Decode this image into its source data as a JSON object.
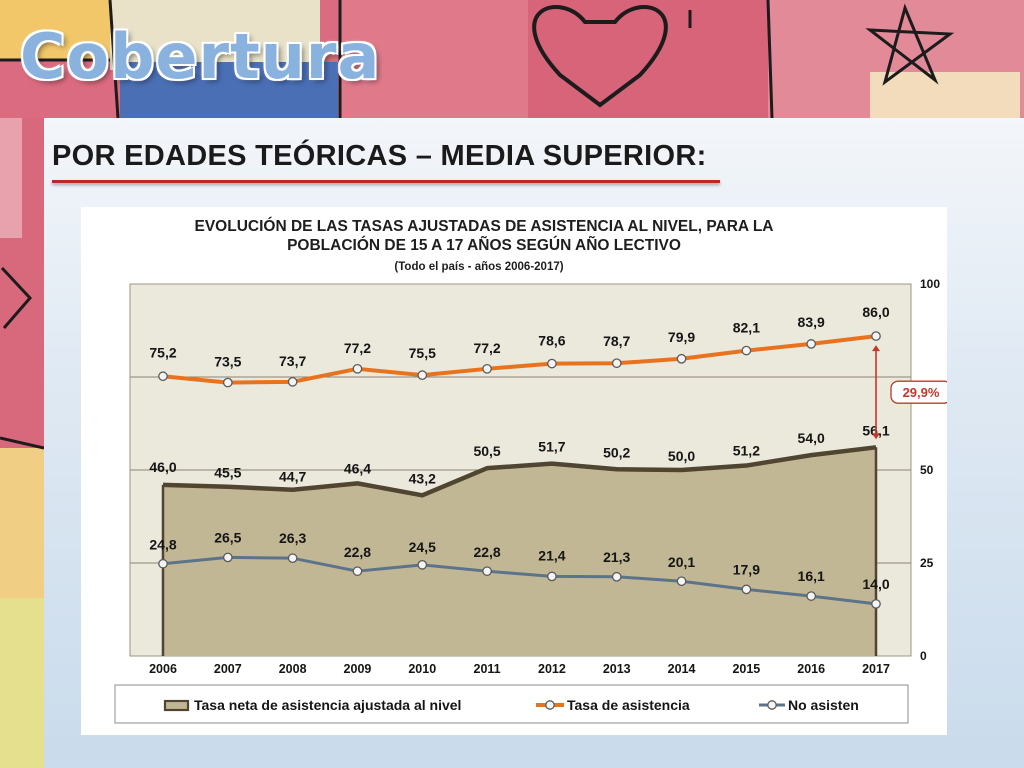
{
  "slide": {
    "banner_title": "Cobertura",
    "heading": "POR EDADES TEÓRICAS – MEDIA SUPERIOR:"
  },
  "colors": {
    "net_rate_fill": "#c2b795",
    "net_rate_line": "#4f4530",
    "attendance_line": "#e8731e",
    "not_attending_line": "#5b7489",
    "annotation": "#c0392b",
    "heading_rule": "#b52a2a"
  },
  "chart_data": {
    "type": "area",
    "title_lines": [
      "EVOLUCIÓN DE LAS TASAS  AJUSTADAS DE ASISTENCIA AL NIVEL, PARA LA",
      "POBLACIÓN DE 15 A 17 AÑOS SEGÚN AÑO LECTIVO"
    ],
    "subtitle": "(Todo el país  - años 2006-2017)",
    "categories": [
      "2006",
      "2007",
      "2008",
      "2009",
      "2010",
      "2011",
      "2012",
      "2013",
      "2014",
      "2015",
      "2016",
      "2017"
    ],
    "ylim": [
      0,
      100
    ],
    "y_ticks": [
      {
        "value": 0,
        "label": "0"
      },
      {
        "value": 25,
        "label": "25"
      },
      {
        "value": 50,
        "label": "50"
      },
      {
        "value": 100,
        "label": "100"
      }
    ],
    "y_axis_side": "right",
    "grid": true,
    "legend_position": "bottom",
    "series": [
      {
        "key": "net",
        "name": "Tasa neta de asistencia ajustada al nivel",
        "style": "area",
        "values": [
          46.0,
          45.5,
          44.7,
          46.4,
          43.2,
          50.5,
          51.7,
          50.2,
          50.0,
          51.2,
          54.0,
          56.1
        ],
        "labels": [
          "46,0",
          "45,5",
          "44,7",
          "46,4",
          "43,2",
          "50,5",
          "51,7",
          "50,2",
          "50,0",
          "51,2",
          "54,0",
          "56,1"
        ]
      },
      {
        "key": "att",
        "name": "Tasa de asistencia",
        "style": "line-markers",
        "values": [
          75.2,
          73.5,
          73.7,
          77.2,
          75.5,
          77.2,
          78.6,
          78.7,
          79.9,
          82.1,
          83.9,
          86.0
        ],
        "labels": [
          "75,2",
          "73,5",
          "73,7",
          "77,2",
          "75,5",
          "77,2",
          "78,6",
          "78,7",
          "79,9",
          "82,1",
          "83,9",
          "86,0"
        ]
      },
      {
        "key": "no",
        "name": "No asisten",
        "style": "line-markers",
        "values": [
          24.8,
          26.5,
          26.3,
          22.8,
          24.5,
          22.8,
          21.4,
          21.3,
          20.1,
          17.9,
          16.1,
          14.0
        ],
        "labels": [
          "24,8",
          "26,5",
          "26,3",
          "22,8",
          "24,5",
          "22,8",
          "21,4",
          "21,3",
          "20,1",
          "17,9",
          "16,1",
          "14,0"
        ]
      }
    ],
    "annotations": [
      {
        "text": "29,9%",
        "from_series": "att",
        "to_series": "net",
        "category": "2017"
      }
    ]
  }
}
